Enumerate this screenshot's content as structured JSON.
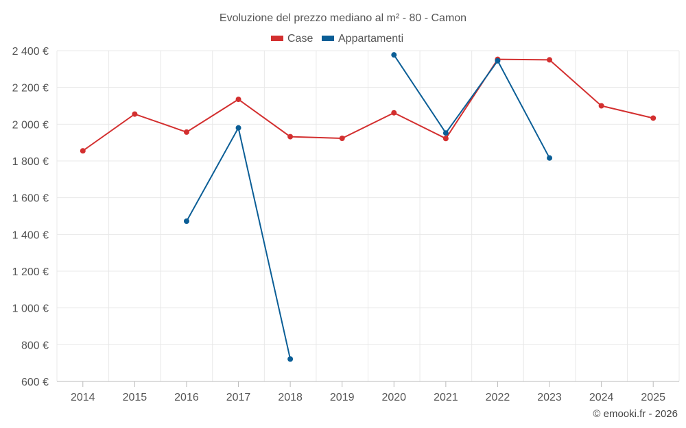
{
  "chart_data": {
    "type": "line",
    "title": "Evoluzione del prezzo mediano al m² - 80 - Camon",
    "categories": [
      "2014",
      "2015",
      "2016",
      "2017",
      "2018",
      "2019",
      "2020",
      "2021",
      "2022",
      "2023",
      "2024",
      "2025"
    ],
    "ylim": [
      600,
      2400
    ],
    "yticks": [
      600,
      800,
      1000,
      1200,
      1400,
      1600,
      1800,
      2000,
      2200,
      2400
    ],
    "ytick_labels": [
      "600 €",
      "800 €",
      "1 000 €",
      "1 200 €",
      "1 400 €",
      "1 600 €",
      "1 800 €",
      "2 000 €",
      "2 200 €",
      "2 400 €"
    ],
    "grid": true,
    "legend_position": "top-center",
    "series": [
      {
        "name": "Case",
        "color": "#d32f2f",
        "values": [
          1855,
          2055,
          1957,
          2135,
          1932,
          1923,
          2062,
          1922,
          2353,
          2350,
          2100,
          2033
        ]
      },
      {
        "name": "Appartamenti",
        "color": "#0b5e96",
        "values": [
          null,
          null,
          1472,
          1980,
          722,
          null,
          2377,
          1952,
          2345,
          1816,
          null,
          null
        ]
      }
    ],
    "credit": "© emooki.fr - 2026"
  }
}
